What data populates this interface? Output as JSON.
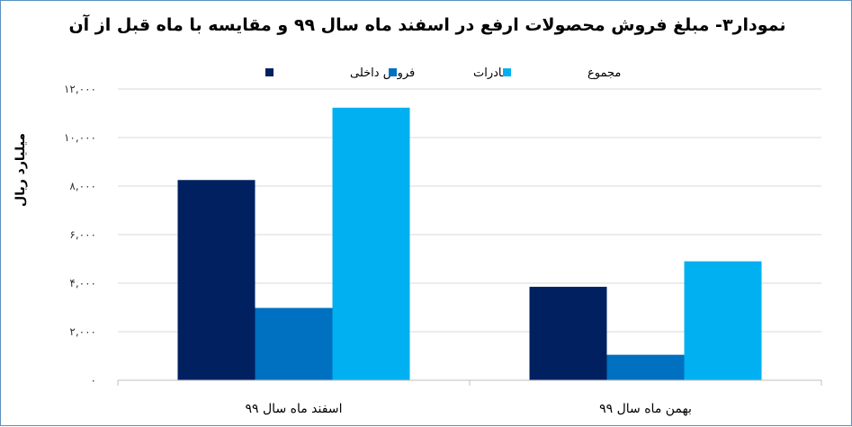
{
  "chart_data": {
    "type": "bar",
    "title": "نمودار۳- مبلغ فروش محصولات ارفع در اسفند ماه سال ۹۹ و مقایسه با ماه قبل از آن",
    "ylabel": "میلیارد ریال",
    "categories": [
      "اسفند ماه سال ۹۹",
      "بهمن ماه سال ۹۹"
    ],
    "series": [
      {
        "name": "فروش داخلی",
        "color": "#002060",
        "values": [
          8250,
          3850
        ]
      },
      {
        "name": "صادرات",
        "color": "#0070c0",
        "values": [
          2980,
          1050
        ]
      },
      {
        "name": "مجموع",
        "color": "#00b0f0",
        "values": [
          11230,
          4900
        ]
      }
    ],
    "ylim": [
      0,
      12000
    ],
    "yticks": [
      0,
      2000,
      4000,
      6000,
      8000,
      10000,
      12000
    ],
    "ytick_labels": [
      "۰",
      "۲,۰۰۰",
      "۴,۰۰۰",
      "۶,۰۰۰",
      "۸,۰۰۰",
      "۱۰,۰۰۰",
      "۱۲,۰۰۰"
    ],
    "grid": true,
    "legend_position": "top"
  }
}
